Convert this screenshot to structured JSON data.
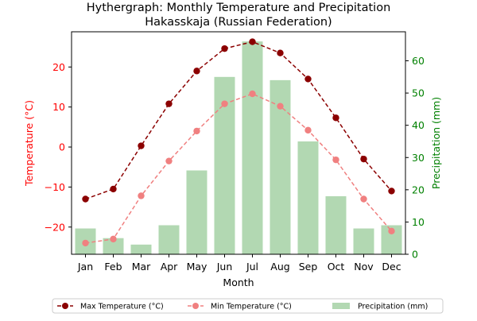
{
  "chart_data": {
    "type": "bar",
    "title": "Hythergraph: Monthly Temperature and Precipitation",
    "subtitle": "Hakasskaja (Russian Federation)",
    "xlabel": "Month",
    "ylabel_left": "Temperature (°C)",
    "ylabel_right": "Precipitation (mm)",
    "categories": [
      "Jan",
      "Feb",
      "Mar",
      "Apr",
      "May",
      "Jun",
      "Jul",
      "Aug",
      "Sep",
      "Oct",
      "Nov",
      "Dec"
    ],
    "ylim_left": [
      -26.8,
      28.8
    ],
    "ylim_right": [
      0,
      69
    ],
    "yticks_left": [
      -20,
      -10,
      0,
      10,
      20
    ],
    "yticks_right": [
      0,
      10,
      20,
      30,
      40,
      50,
      60
    ],
    "grid": false,
    "legend_position": "bottom-center",
    "series": [
      {
        "name": "Max Temperature (°C)",
        "kind": "line",
        "axis": "left",
        "color": "#8b0000",
        "linestyle": "dashed",
        "values": [
          -13.0,
          -10.5,
          0.3,
          10.8,
          19.0,
          24.6,
          26.3,
          23.5,
          17.0,
          7.3,
          -3.0,
          -11.0
        ]
      },
      {
        "name": "Min Temperature (°C)",
        "kind": "line",
        "axis": "left",
        "color": "#f08080",
        "linestyle": "dashed",
        "values": [
          -24.0,
          -23.0,
          -12.2,
          -3.5,
          4.0,
          10.8,
          13.3,
          10.2,
          4.2,
          -3.2,
          -13.0,
          -21.0
        ]
      },
      {
        "name": "Precipitation (mm)",
        "kind": "bar",
        "axis": "right",
        "color": "#b2d8b2",
        "values": [
          8,
          5,
          3,
          9,
          26,
          55,
          66,
          54,
          35,
          18,
          8,
          9
        ]
      }
    ]
  }
}
